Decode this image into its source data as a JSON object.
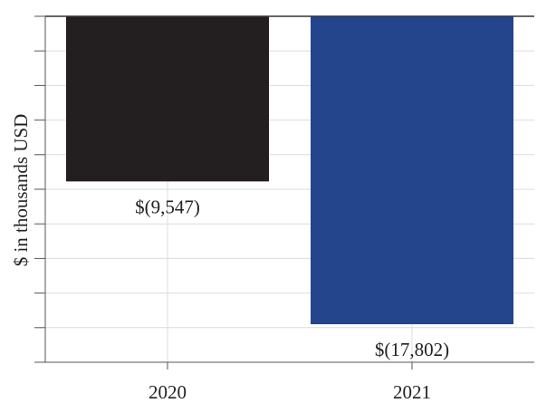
{
  "chart_data": {
    "type": "bar",
    "categories": [
      "2020",
      "2021"
    ],
    "values": [
      -9547,
      -17802
    ],
    "value_labels": [
      "$(9,547)",
      "$(17,802)"
    ],
    "bar_colors": [
      "#231f20",
      "#24448c"
    ],
    "xlabel": "",
    "ylabel": "$ in thousands USD",
    "ylim": [
      -20000,
      0
    ],
    "grid": true
  }
}
